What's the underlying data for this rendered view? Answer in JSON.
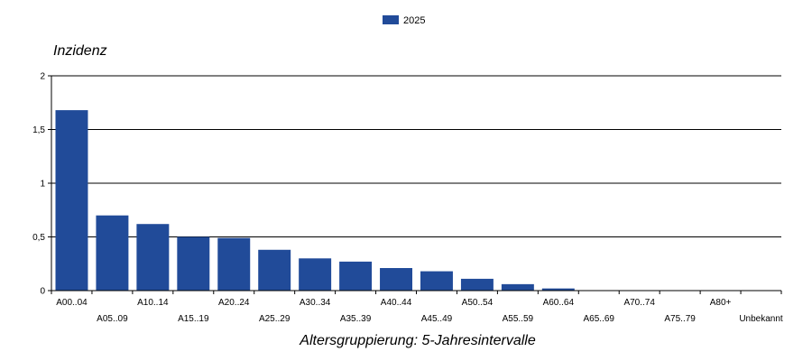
{
  "chart_data": {
    "type": "bar",
    "categories": [
      "A00..04",
      "A05..09",
      "A10..14",
      "A15..19",
      "A20..24",
      "A25..29",
      "A30..34",
      "A35..39",
      "A40..44",
      "A45..49",
      "A50..54",
      "A55..59",
      "A60..64",
      "A65..69",
      "A70..74",
      "A75..79",
      "A80+",
      "Unbekannt"
    ],
    "series": [
      {
        "name": "2025",
        "values": [
          1.68,
          0.7,
          0.62,
          0.5,
          0.49,
          0.38,
          0.3,
          0.27,
          0.21,
          0.18,
          0.11,
          0.06,
          0.02,
          0,
          0,
          0,
          0,
          0
        ]
      }
    ],
    "ylabel": "Inzidenz",
    "xlabel": "Altersgruppierung: 5-Jahresintervalle",
    "ylim": [
      0,
      2
    ],
    "yticks": [
      0,
      0.5,
      1,
      1.5,
      2
    ],
    "ytick_labels": [
      "0",
      "0,5",
      "1",
      "1,5",
      "2"
    ],
    "grid": true,
    "legend_position": "top-center",
    "color": "#214b99"
  }
}
